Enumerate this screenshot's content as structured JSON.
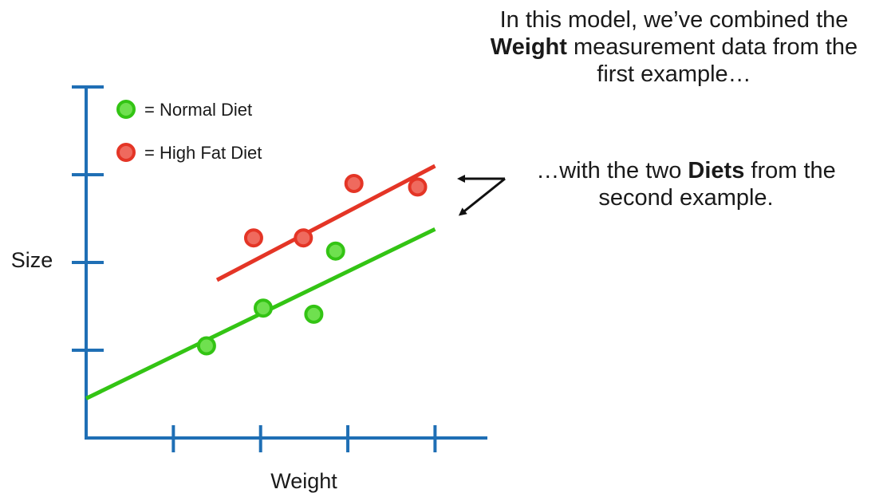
{
  "caption_top": {
    "line1": "In this model, we’ve combined the",
    "bold": "Weight",
    "line2_rest": " measurement data from the",
    "line3": "first example…"
  },
  "caption_side": {
    "prefix": "…with the two ",
    "bold": "Diets",
    "suffix": " from the",
    "line2": "second example."
  },
  "colors": {
    "axis": "#1f6fb5",
    "normal": "#33c414",
    "normal_fill": "#6fe04f",
    "highfat": "#e43526",
    "highfat_fill": "#ef6a5e",
    "arrow": "#111111"
  },
  "chart_data": {
    "type": "scatter",
    "title": "",
    "xlabel": "Weight",
    "ylabel": "Size",
    "xlim": [
      0,
      4.6
    ],
    "ylim": [
      0,
      4
    ],
    "x_ticks": [
      1,
      2,
      3,
      4
    ],
    "y_ticks": [
      1,
      2,
      3,
      4
    ],
    "tick_labels_shown": false,
    "grid": false,
    "legend_position": "top-left",
    "series": [
      {
        "name": "= Normal Diet",
        "color": "#33c414",
        "points": [
          [
            1.38,
            1.05
          ],
          [
            2.03,
            1.48
          ],
          [
            2.61,
            1.41
          ],
          [
            2.86,
            2.13
          ]
        ],
        "fit_line": [
          [
            0,
            0.45
          ],
          [
            4,
            2.38
          ]
        ]
      },
      {
        "name": "= High Fat Diet",
        "color": "#e43526",
        "points": [
          [
            1.92,
            2.28
          ],
          [
            2.49,
            2.28
          ],
          [
            3.07,
            2.9
          ],
          [
            3.8,
            2.86
          ]
        ],
        "fit_line": [
          [
            1.5,
            1.8
          ],
          [
            4,
            3.1
          ]
        ]
      }
    ]
  }
}
